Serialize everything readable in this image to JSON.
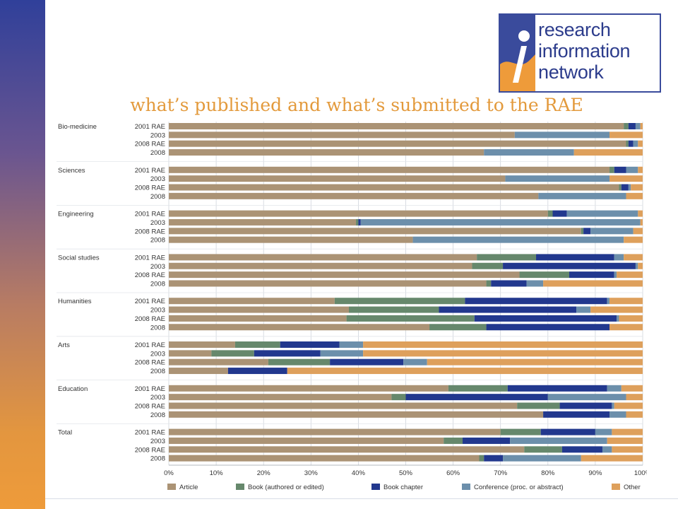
{
  "page": {
    "title": "what’s published and what’s submitted to the RAE"
  },
  "logo": {
    "lines": [
      "research",
      "information",
      "network"
    ],
    "colors": {
      "blue": "#3a4b9c",
      "orange": "#ee9b3a"
    }
  },
  "chart_data": {
    "type": "bar",
    "orientation": "horizontal",
    "stacked": true,
    "normalized": true,
    "xlim": [
      0,
      100
    ],
    "x_ticks": [
      "0%",
      "10%",
      "20%",
      "30%",
      "40%",
      "50%",
      "60%",
      "70%",
      "80%",
      "90%",
      "100%"
    ],
    "grid": true,
    "legend_position": "bottom",
    "series_names": [
      "Article",
      "Book (authored or edited)",
      "Book chapter",
      "Conference (proc. or abstract)",
      "Other"
    ],
    "series_colors": [
      "#ab9375",
      "#66886c",
      "#22388e",
      "#6c8fab",
      "#dea05c"
    ],
    "groups": [
      {
        "name": "Bio-medicine",
        "bars": [
          {
            "label": "2001 RAE",
            "values": [
              96,
              1,
              1.5,
              1,
              0.5
            ]
          },
          {
            "label": "2003",
            "values": [
              73,
              0,
              0,
              20,
              7
            ]
          },
          {
            "label": "2008 RAE",
            "values": [
              96.5,
              0.5,
              1,
              1,
              1
            ]
          },
          {
            "label": "2008",
            "values": [
              66.5,
              0,
              0,
              19,
              14.5
            ]
          }
        ]
      },
      {
        "name": "Sciences",
        "bars": [
          {
            "label": "2001 RAE",
            "values": [
              93,
              1,
              2.5,
              2.5,
              1
            ]
          },
          {
            "label": "2003",
            "values": [
              71,
              0,
              0,
              22,
              7
            ]
          },
          {
            "label": "2008 RAE",
            "values": [
              95,
              0.5,
              1.5,
              0.5,
              2.5
            ]
          },
          {
            "label": "2008",
            "values": [
              78,
              0,
              0,
              18.5,
              3.5
            ]
          }
        ]
      },
      {
        "name": "Engineering",
        "bars": [
          {
            "label": "2001 RAE",
            "values": [
              80,
              1,
              3,
              15,
              1
            ]
          },
          {
            "label": "2003",
            "values": [
              39.5,
              0.5,
              0.5,
              59,
              0.5
            ]
          },
          {
            "label": "2008 RAE",
            "values": [
              87,
              0.5,
              1.5,
              9,
              2
            ]
          },
          {
            "label": "2008",
            "values": [
              51.5,
              0,
              0,
              44.5,
              4
            ]
          }
        ]
      },
      {
        "name": "Social studies",
        "bars": [
          {
            "label": "2001 RAE",
            "values": [
              65,
              12.5,
              16.5,
              2,
              4
            ]
          },
          {
            "label": "2003",
            "values": [
              64,
              6.5,
              28,
              0.5,
              1
            ]
          },
          {
            "label": "2008 RAE",
            "values": [
              74,
              10.5,
              9.5,
              0.5,
              5.5
            ]
          },
          {
            "label": "2008",
            "values": [
              67,
              1,
              7.5,
              3.5,
              21
            ]
          }
        ]
      },
      {
        "name": "Humanities",
        "bars": [
          {
            "label": "2001 RAE",
            "values": [
              35,
              27.5,
              30,
              0.5,
              7
            ]
          },
          {
            "label": "2003",
            "values": [
              38,
              19,
              29,
              3,
              11
            ]
          },
          {
            "label": "2008 RAE",
            "values": [
              37.5,
              27,
              30,
              0.5,
              5
            ]
          },
          {
            "label": "2008",
            "values": [
              55,
              12,
              26,
              0,
              7
            ]
          }
        ]
      },
      {
        "name": "Arts",
        "bars": [
          {
            "label": "2001 RAE",
            "values": [
              14,
              9.5,
              12.5,
              5,
              59
            ]
          },
          {
            "label": "2003",
            "values": [
              9,
              9,
              14,
              9,
              59
            ]
          },
          {
            "label": "2008 RAE",
            "values": [
              21,
              13,
              15.5,
              5,
              45.5
            ]
          },
          {
            "label": "2008",
            "values": [
              12.5,
              0,
              12.5,
              0,
              75
            ]
          }
        ]
      },
      {
        "name": "Education",
        "bars": [
          {
            "label": "2001 RAE",
            "values": [
              59,
              12.5,
              21,
              3,
              4.5
            ]
          },
          {
            "label": "2003",
            "values": [
              47,
              3,
              30,
              16.5,
              3.5
            ]
          },
          {
            "label": "2008 RAE",
            "values": [
              73.5,
              9,
              11,
              0.5,
              6
            ]
          },
          {
            "label": "2008",
            "values": [
              79,
              0,
              14,
              3.5,
              3.5
            ]
          }
        ]
      },
      {
        "name": "Total",
        "bars": [
          {
            "label": "2001 RAE",
            "values": [
              70,
              8.5,
              11.5,
              3.5,
              6.5
            ]
          },
          {
            "label": "2003",
            "values": [
              58,
              4,
              10,
              20.5,
              7.5
            ]
          },
          {
            "label": "2008 RAE",
            "values": [
              75,
              8,
              8.5,
              2,
              6.5
            ]
          },
          {
            "label": "2008",
            "values": [
              65.5,
              1,
              4,
              16.5,
              13
            ]
          }
        ]
      }
    ]
  }
}
